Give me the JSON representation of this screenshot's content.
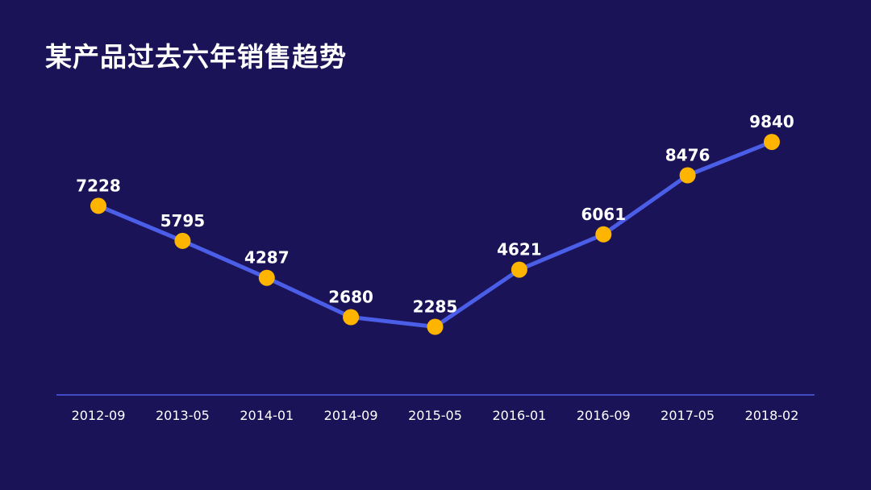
{
  "page": {
    "title": "某产品过去六年销售趋势"
  },
  "colors": {
    "background": "#1b1357",
    "line": "#4b5ee8",
    "marker": "#ffb400",
    "axis": "#4b5ee8",
    "text": "#ffffff"
  },
  "chart_data": {
    "type": "line",
    "title": "某产品过去六年销售趋势",
    "xlabel": "",
    "ylabel": "",
    "categories": [
      "2012-09",
      "2013-05",
      "2014-01",
      "2014-09",
      "2015-05",
      "2016-01",
      "2016-09",
      "2017-05",
      "2018-02"
    ],
    "series": [
      {
        "values": [
          7228,
          5795,
          4287,
          2680,
          2285,
          4621,
          6061,
          8476,
          9840
        ]
      }
    ],
    "ylim": [
      -500,
      10800
    ],
    "grid": false,
    "legend": "none",
    "data_labels": true
  }
}
